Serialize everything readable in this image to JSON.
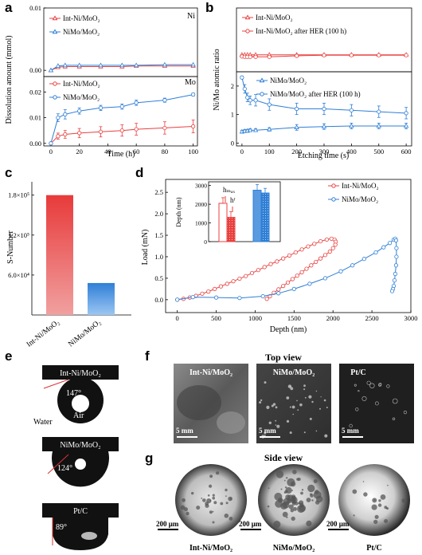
{
  "colors": {
    "red": "#e8413f",
    "blue": "#2f7fd6",
    "grid": "#000000"
  },
  "panels": {
    "a": {
      "letter": "a",
      "ylabel": "Dissolution amount (mmol)",
      "xlabel": "Time (h)"
    },
    "b": {
      "letter": "b",
      "ylabel": "Ni/Mo atomic ratio",
      "xlabel": "Etching time (s)"
    },
    "c": {
      "letter": "c"
    },
    "d": {
      "letter": "d"
    },
    "e": {
      "letter": "e",
      "water": "Water",
      "air": "Air",
      "drops": [
        {
          "label": "Int-Ni/MoO₂",
          "angle": "147°"
        },
        {
          "label": "NiMo/MoO₂",
          "angle": "124°"
        },
        {
          "label": "Pt/C",
          "angle": "89°"
        }
      ]
    },
    "f": {
      "letter": "f",
      "title": "Top view",
      "scale": "5 mm",
      "images": [
        "Int-Ni/MoO₂",
        "NiMo/MoO₂",
        "Pt/C"
      ]
    },
    "g": {
      "letter": "g",
      "title": "Side view",
      "scale": "200 μm",
      "images": [
        "Int-Ni/MoO₂",
        "NiMo/MoO₂",
        "Pt/C"
      ]
    }
  },
  "chart_data": [
    {
      "panel": "a-top",
      "type": "line",
      "x": [
        0,
        5,
        10,
        20,
        35,
        50,
        60,
        80,
        100
      ],
      "series": [
        {
          "name": "Int-Ni/MoO₂",
          "values": [
            0.0,
            0.0005,
            0.0006,
            0.0006,
            0.0006,
            0.0006,
            0.0007,
            0.0007,
            0.0007
          ]
        },
        {
          "name": "NiMo/MoO₂",
          "values": [
            0.0,
            0.0007,
            0.0008,
            0.0008,
            0.0008,
            0.0008,
            0.0008,
            0.0009,
            0.0009
          ]
        }
      ],
      "annotation": "Ni",
      "ylim": [
        -0.001,
        0.01
      ],
      "yticks": [
        "0.00",
        "0.01"
      ],
      "xlim": [
        -5,
        103
      ]
    },
    {
      "panel": "a-bottom",
      "type": "line",
      "x": [
        0,
        5,
        10,
        20,
        35,
        50,
        60,
        80,
        100
      ],
      "series": [
        {
          "name": "Int-Ni/MoO₂",
          "values": [
            0.0,
            0.0028,
            0.0035,
            0.004,
            0.0045,
            0.005,
            0.0055,
            0.006,
            0.0066
          ],
          "err": [
            0.0,
            0.0012,
            0.0015,
            0.0018,
            0.002,
            0.0022,
            0.0023,
            0.0024,
            0.0025
          ]
        },
        {
          "name": "NiMo/MoO₂",
          "values": [
            0.0,
            0.01,
            0.0113,
            0.0126,
            0.0138,
            0.0143,
            0.0158,
            0.0168,
            0.019
          ],
          "err": [
            0.0,
            0.0015,
            0.0018,
            0.0012,
            0.001,
            0.001,
            0.001,
            0.0008,
            0.0006
          ]
        }
      ],
      "annotation": "Mo",
      "ylim": [
        -0.001,
        0.026
      ],
      "yticks": [
        "0.00",
        "0.01",
        "0.02"
      ],
      "xticks": [
        "0",
        "20",
        "40",
        "60",
        "80",
        "100"
      ],
      "xlim": [
        -5,
        103
      ]
    },
    {
      "panel": "b-top",
      "type": "line",
      "x": [
        0,
        10,
        20,
        30,
        50,
        100,
        200,
        300,
        400,
        500,
        600
      ],
      "series": [
        {
          "name": "Int-Ni/MoO₂",
          "values": [
            0.3,
            0.3,
            0.3,
            0.3,
            0.3,
            0.3,
            0.3,
            0.3,
            0.3,
            0.3,
            0.3
          ]
        },
        {
          "name": "Int-Ni/MoO₂ after HER (100 h)",
          "values": [
            0.22,
            0.2,
            0.2,
            0.2,
            0.2,
            0.2,
            0.25,
            0.28,
            0.28,
            0.28,
            0.28
          ]
        }
      ],
      "ylim": [
        -0.5,
        2.5
      ],
      "xlim": [
        -20,
        620
      ]
    },
    {
      "panel": "b-bottom",
      "type": "line",
      "x": [
        0,
        10,
        20,
        30,
        50,
        100,
        200,
        300,
        400,
        500,
        600
      ],
      "series": [
        {
          "name": "NiMo/MoO₂",
          "values": [
            0.4,
            0.42,
            0.43,
            0.45,
            0.45,
            0.48,
            0.55,
            0.58,
            0.6,
            0.6,
            0.6
          ],
          "err": [
            0.05,
            0.05,
            0.05,
            0.05,
            0.05,
            0.06,
            0.1,
            0.1,
            0.1,
            0.1,
            0.1
          ]
        },
        {
          "name": "NiMo/MoO₂ after HER (100 h)",
          "values": [
            2.3,
            1.9,
            1.6,
            1.5,
            1.5,
            1.35,
            1.2,
            1.2,
            1.15,
            1.1,
            1.05
          ],
          "err": [
            0.05,
            0.15,
            0.15,
            0.15,
            0.2,
            0.2,
            0.2,
            0.2,
            0.2,
            0.2,
            0.2
          ]
        }
      ],
      "ylim": [
        -0.1,
        2.5
      ],
      "xlim": [
        -20,
        620
      ],
      "xticks": [
        "0",
        "100",
        "200",
        "300",
        "400",
        "500",
        "600"
      ],
      "yticks": [
        "0",
        "1",
        "2"
      ]
    },
    {
      "panel": "c",
      "type": "bar",
      "categories": [
        "Int-Ni/MoO₂",
        "NiMo/MoO₂"
      ],
      "values": [
        180000,
        48000
      ],
      "ylabel": "S-Number",
      "ylim": [
        0,
        200000
      ],
      "yticks": [
        "6.0×10⁴",
        "1.2×10⁵",
        "1.8×10⁵"
      ]
    },
    {
      "panel": "d",
      "type": "line",
      "xlabel": "Depth (nm)",
      "ylabel": "Load (mN)",
      "xlim": [
        -150,
        3000
      ],
      "ylim": [
        -0.3,
        2.8
      ],
      "xticks": [
        "0",
        "500",
        "1000",
        "1500",
        "2000",
        "2500",
        "3000"
      ],
      "yticks": [
        "0.0",
        "0.5",
        "1.0",
        "1.5",
        "2.0",
        "2.5"
      ],
      "series": [
        {
          "name": "Int-Ni/MoO₂",
          "x": [
            0,
            80,
            160,
            240,
            320,
            400,
            480,
            560,
            640,
            720,
            800,
            880,
            960,
            1040,
            1120,
            1200,
            1280,
            1360,
            1440,
            1520,
            1600,
            1680,
            1760,
            1840,
            1920,
            1980,
            2020,
            2035,
            2030,
            2000,
            1960,
            1900,
            1840,
            1780,
            1720,
            1660,
            1600,
            1540,
            1480,
            1420,
            1360,
            1300,
            1240,
            1190,
            1150
          ],
          "y": [
            0,
            0.02,
            0.05,
            0.09,
            0.14,
            0.19,
            0.25,
            0.31,
            0.37,
            0.43,
            0.49,
            0.55,
            0.62,
            0.69,
            0.76,
            0.83,
            0.89,
            0.96,
            1.03,
            1.1,
            1.17,
            1.24,
            1.3,
            1.36,
            1.4,
            1.42,
            1.4,
            1.35,
            1.28,
            1.2,
            1.12,
            1.04,
            0.96,
            0.88,
            0.8,
            0.72,
            0.64,
            0.56,
            0.48,
            0.4,
            0.32,
            0.24,
            0.16,
            0.08,
            0.02
          ]
        },
        {
          "name": "NiMo/MoO₂",
          "x": [
            0,
            200,
            500,
            800,
            1100,
            1300,
            1500,
            1700,
            1900,
            2100,
            2250,
            2400,
            2550,
            2650,
            2730,
            2780,
            2800,
            2810,
            2815,
            2815,
            2810,
            2800,
            2790,
            2780,
            2770,
            2760
          ],
          "y": [
            0,
            0.06,
            0.05,
            0.04,
            0.08,
            0.15,
            0.25,
            0.37,
            0.5,
            0.66,
            0.8,
            0.95,
            1.1,
            1.22,
            1.32,
            1.4,
            1.42,
            1.38,
            1.2,
            1.0,
            0.8,
            0.6,
            0.45,
            0.32,
            0.25,
            0.2
          ]
        }
      ],
      "inset": {
        "ylabel": "Depth (nm)",
        "yticks": [
          "0",
          "1000",
          "2000",
          "3000"
        ],
        "labels": [
          "hₘₐₓ",
          "hᶠ"
        ],
        "bars": [
          {
            "group": "Int-Ni/MoO₂",
            "hmax": 2050,
            "hf": 1300,
            "err": [
              300,
              300
            ]
          },
          {
            "group": "NiMo/MoO₂",
            "hmax": 2750,
            "hf": 2600,
            "err": [
              300,
              250
            ]
          }
        ]
      }
    }
  ]
}
